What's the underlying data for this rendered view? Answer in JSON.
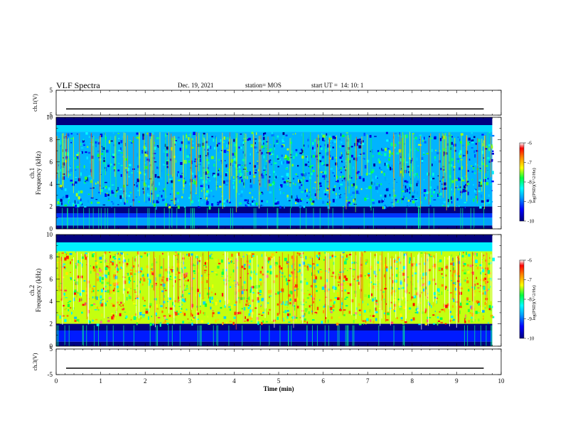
{
  "header": {
    "title": "VLF Spectra",
    "date": "Dec. 19, 2021",
    "station": "station= MOS",
    "start": "start UT =  14: 10: 1"
  },
  "chart_data": {
    "type": "heatmap",
    "title": "VLF Spectra",
    "xlabel": "Time (min)",
    "xlim": [
      0,
      10
    ],
    "x_ticks": [
      0,
      1,
      2,
      3,
      4,
      5,
      6,
      7,
      8,
      9,
      10
    ],
    "panels": [
      {
        "name": "ch.1(V)",
        "kind": "waveform",
        "ylim": [
          -5,
          5
        ],
        "y_ticks": [
          5,
          -5
        ],
        "baseline": -2.5,
        "x_data_end": 9.8
      },
      {
        "name": "ch.1",
        "kind": "spectrogram",
        "ylabel": "Frequency (kHz)",
        "ylim": [
          0,
          10
        ],
        "y_ticks": [
          0,
          2,
          4,
          6,
          8,
          10
        ],
        "x_data_end": 9.8,
        "colorbar": {
          "label": "log(PSD)(V^2/Hz)",
          "range": [
            -10,
            -6
          ],
          "ticks": [
            -6,
            -7,
            -8,
            -9,
            -10
          ]
        },
        "bands": [
          {
            "f_range": [
              9.3,
              10
            ],
            "level": -10
          },
          {
            "f_range": [
              8.7,
              9.3
            ],
            "level": -8.5
          },
          {
            "f_range": [
              2.0,
              8.7
            ],
            "level": -8.7
          },
          {
            "f_range": [
              1.4,
              2.0
            ],
            "level": -10
          },
          {
            "f_range": [
              1.0,
              1.4
            ],
            "level": -9.2
          },
          {
            "f_range": [
              0.3,
              1.0
            ],
            "level": -8.8
          },
          {
            "f_range": [
              0,
              0.3
            ],
            "level": -10
          }
        ]
      },
      {
        "name": "ch.2",
        "kind": "spectrogram",
        "ylabel": "Frequency (kHz)",
        "ylim": [
          0,
          10
        ],
        "y_ticks": [
          0,
          2,
          4,
          6,
          8,
          10
        ],
        "x_data_end": 9.8,
        "colorbar": {
          "label": "log(PSD)(V^2/Hz)",
          "range": [
            -10,
            -6
          ],
          "ticks": [
            -6,
            -7,
            -8,
            -9,
            -10
          ]
        },
        "bands": [
          {
            "f_range": [
              9.3,
              10
            ],
            "level": -10
          },
          {
            "f_range": [
              8.5,
              9.3
            ],
            "level": -8.4
          },
          {
            "f_range": [
              2.0,
              8.5
            ],
            "level": -7.4
          },
          {
            "f_range": [
              1.4,
              2.0
            ],
            "level": -10
          },
          {
            "f_range": [
              0.4,
              1.4
            ],
            "level": -9.3
          },
          {
            "f_range": [
              0,
              0.4
            ],
            "level": -10
          }
        ]
      },
      {
        "name": "ch.3(V)",
        "kind": "waveform",
        "ylim": [
          -5,
          5
        ],
        "y_ticks": [
          5,
          -5
        ],
        "baseline": -2.5,
        "x_data_end": 9.8
      }
    ]
  }
}
